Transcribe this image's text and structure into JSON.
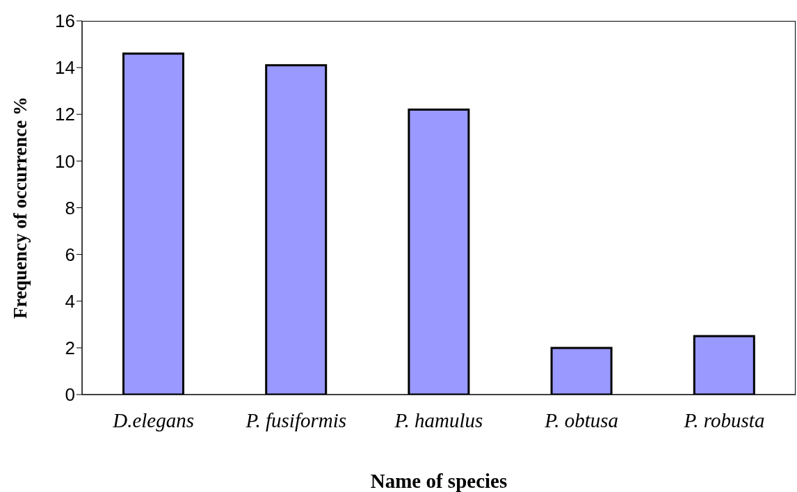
{
  "chart_data": {
    "type": "bar",
    "xlabel": "Name of species",
    "ylabel": "Frequency of occurrence %",
    "categories": [
      "D.elegans",
      "P. fusiformis",
      "P. hamulus",
      "P. obtusa",
      "P. robusta"
    ],
    "values": [
      14.6,
      14.1,
      12.2,
      2.0,
      2.5
    ],
    "color": "#9999ff",
    "ylim": [
      0,
      16
    ],
    "yticks": [
      0,
      2,
      4,
      6,
      8,
      10,
      12,
      14,
      16
    ],
    "grid": false
  }
}
